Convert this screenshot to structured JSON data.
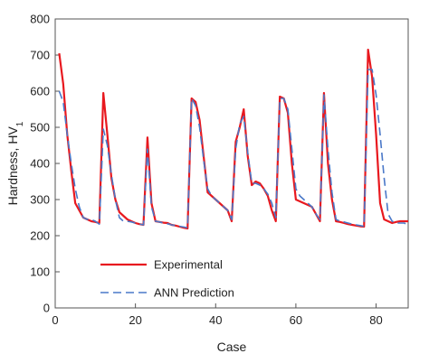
{
  "chart_data": {
    "type": "line",
    "xlabel": "Case",
    "ylabel": {
      "main": "Hardness, HV",
      "sub": "1"
    },
    "xlim": [
      0,
      88
    ],
    "ylim": [
      0,
      800
    ],
    "xticks": [
      0,
      20,
      40,
      60,
      80
    ],
    "yticks": [
      0,
      100,
      200,
      300,
      400,
      500,
      600,
      700,
      800
    ],
    "grid": false,
    "legend_position": "lower-left",
    "x": [
      1,
      2,
      3,
      4,
      5,
      6,
      7,
      8,
      9,
      10,
      11,
      12,
      13,
      14,
      15,
      16,
      17,
      18,
      19,
      20,
      21,
      22,
      23,
      24,
      25,
      26,
      27,
      28,
      29,
      30,
      31,
      32,
      33,
      34,
      35,
      36,
      37,
      38,
      39,
      40,
      41,
      42,
      43,
      44,
      45,
      46,
      47,
      48,
      49,
      50,
      51,
      52,
      53,
      54,
      55,
      56,
      57,
      58,
      59,
      60,
      61,
      62,
      63,
      64,
      65,
      66,
      67,
      68,
      69,
      70,
      71,
      72,
      73,
      74,
      75,
      76,
      77,
      78,
      79,
      80,
      81,
      82,
      83,
      84,
      85,
      86,
      87,
      88
    ],
    "series": [
      {
        "name": "Experimental",
        "color": "#e8191f",
        "dash": "solid",
        "values": [
          705,
          620,
          480,
          380,
          290,
          270,
          250,
          245,
          240,
          238,
          235,
          595,
          480,
          360,
          300,
          265,
          255,
          245,
          240,
          235,
          232,
          230,
          472,
          290,
          240,
          238,
          236,
          235,
          230,
          228,
          225,
          222,
          220,
          580,
          570,
          520,
          420,
          320,
          310,
          300,
          290,
          280,
          270,
          240,
          460,
          500,
          550,
          420,
          340,
          350,
          345,
          330,
          310,
          270,
          240,
          585,
          580,
          540,
          400,
          300,
          295,
          290,
          285,
          280,
          260,
          240,
          595,
          400,
          300,
          240,
          238,
          235,
          232,
          230,
          228,
          226,
          225,
          715,
          640,
          480,
          290,
          245,
          240,
          235,
          238,
          240,
          240,
          240
        ]
      },
      {
        "name": "ANN Prediction",
        "color": "#4a78c8",
        "dash": "dashed",
        "values": [
          600,
          570,
          480,
          400,
          330,
          280,
          250,
          245,
          245,
          240,
          232,
          495,
          450,
          370,
          300,
          250,
          240,
          240,
          238,
          235,
          232,
          230,
          440,
          280,
          240,
          238,
          235,
          233,
          230,
          228,
          226,
          224,
          222,
          580,
          560,
          500,
          410,
          330,
          310,
          300,
          290,
          280,
          270,
          245,
          440,
          510,
          530,
          430,
          345,
          345,
          340,
          330,
          315,
          290,
          250,
          580,
          580,
          550,
          440,
          330,
          310,
          300,
          290,
          280,
          260,
          245,
          590,
          440,
          320,
          245,
          240,
          238,
          235,
          232,
          230,
          228,
          226,
          660,
          660,
          590,
          480,
          360,
          260,
          240,
          235,
          235,
          235,
          230
        ]
      }
    ]
  }
}
